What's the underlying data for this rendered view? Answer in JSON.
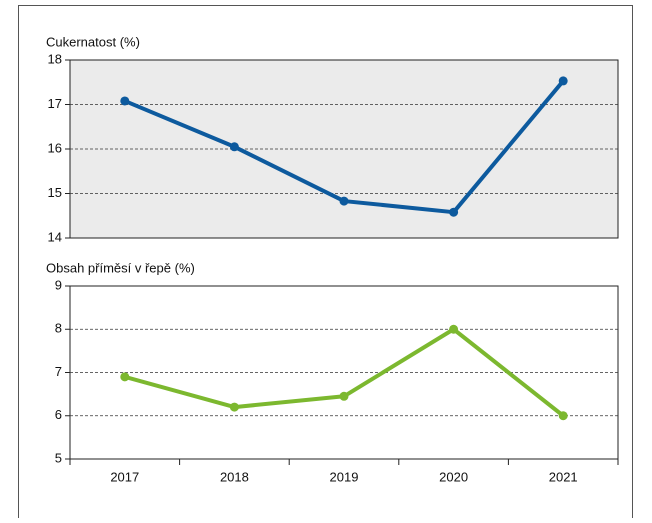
{
  "chart_data": [
    {
      "type": "line",
      "title": "Cukernatost (%)",
      "color": "#0d5a9e",
      "background": "#ebebeb",
      "values": [
        17.08,
        16.05,
        14.83,
        14.58,
        17.53
      ],
      "ylim": [
        14,
        18
      ],
      "yticks": [
        14,
        15,
        16,
        17,
        18
      ],
      "grid": true
    },
    {
      "type": "line",
      "title": "Obsah příměsí v řepě (%)",
      "color": "#7cb82f",
      "background": "#ffffff",
      "categories": [
        "2017",
        "2018",
        "2019",
        "2020",
        "2021"
      ],
      "values": [
        6.9,
        6.2,
        6.45,
        8.0,
        6.0
      ],
      "ylim": [
        5,
        9
      ],
      "yticks": [
        5,
        6,
        7,
        8,
        9
      ],
      "grid": true
    }
  ]
}
